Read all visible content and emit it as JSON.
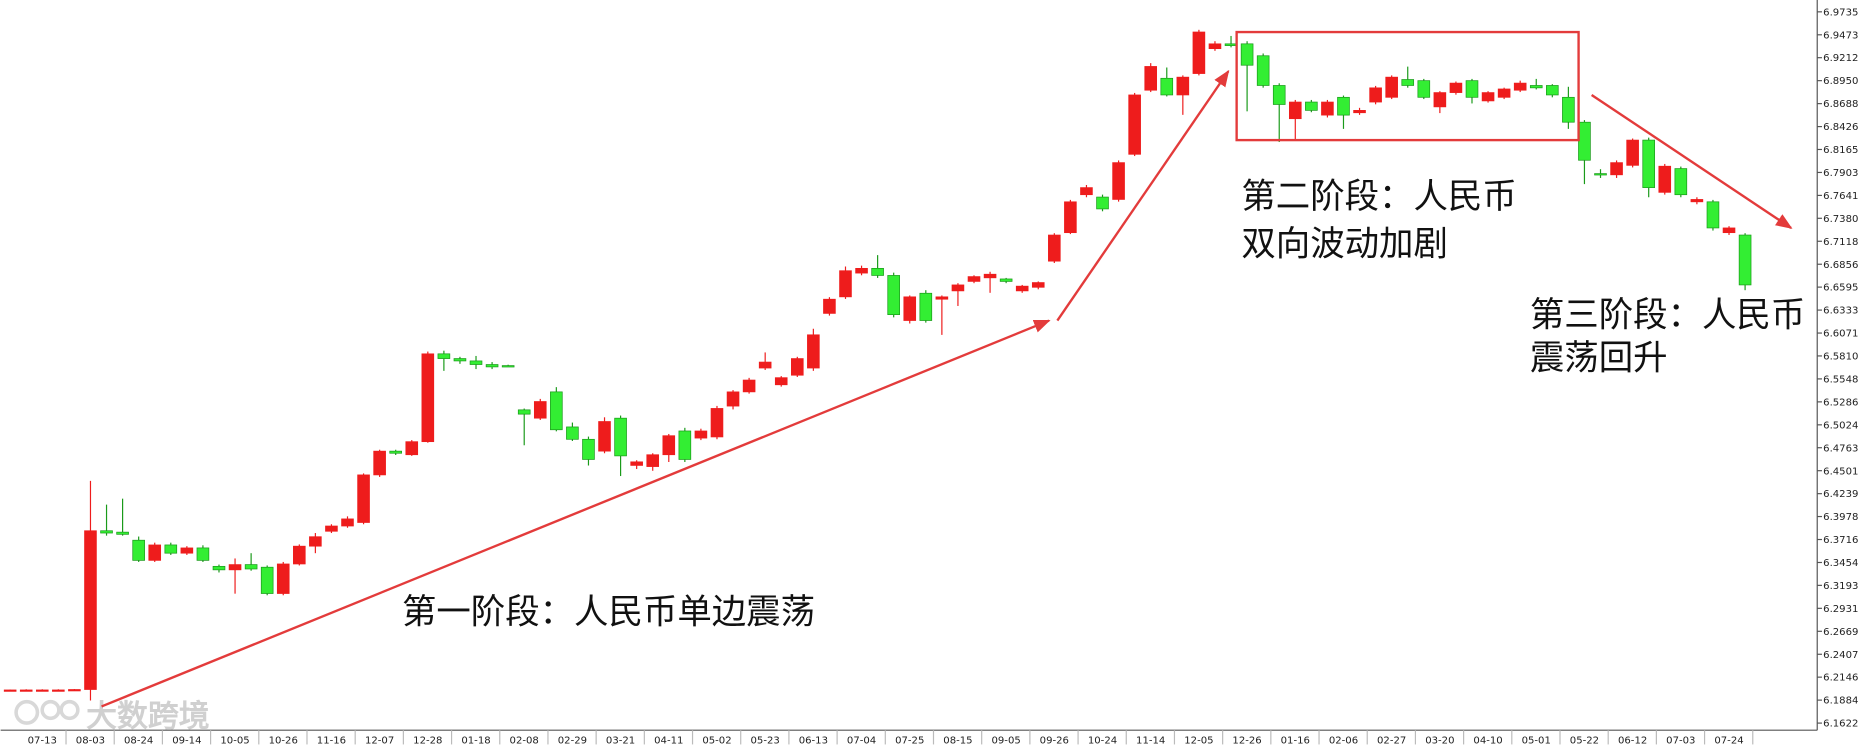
{
  "chart_data": {
    "type": "candlestick",
    "up_color": "#ee1c1c",
    "down_color": "#33ee33",
    "grid": false,
    "ylim": [
      6.1541,
      6.987
    ],
    "yticks": [
      6.9735,
      6.9473,
      6.9212,
      {
        "value": 6.895,
        "label": "6.8950"
      },
      6.8688,
      6.8426,
      6.8165,
      6.7903,
      6.7641,
      {
        "value": 6.738,
        "label": "6.7380"
      },
      6.7118,
      6.6856,
      6.6595,
      6.6333,
      6.6071,
      {
        "value": 6.581,
        "label": "6.5810"
      },
      6.5548,
      6.5286,
      6.5024,
      6.4763,
      6.4501,
      6.4239,
      6.3978,
      6.3716,
      6.3454,
      6.3193,
      6.2931,
      6.2669,
      6.2407,
      6.2146,
      6.1884,
      6.1622
    ],
    "categories": [
      null,
      null,
      "07-13",
      null,
      null,
      "08-03",
      null,
      null,
      "08-24",
      null,
      null,
      "09-14",
      null,
      null,
      "10-05",
      null,
      null,
      "10-26",
      null,
      null,
      "11-16",
      null,
      null,
      "12-07",
      null,
      null,
      "12-28",
      null,
      null,
      "01-18",
      null,
      null,
      "02-08",
      null,
      null,
      "02-29",
      null,
      null,
      "03-21",
      null,
      null,
      "04-11",
      null,
      null,
      "05-02",
      null,
      null,
      "05-23",
      null,
      null,
      "06-13",
      null,
      null,
      "07-04",
      null,
      null,
      "07-25",
      null,
      null,
      "08-15",
      null,
      null,
      "09-05",
      null,
      null,
      "09-26",
      null,
      null,
      "10-24",
      null,
      null,
      "11-14",
      null,
      null,
      "12-05",
      null,
      null,
      "12-26",
      null,
      null,
      "01-16",
      null,
      null,
      "02-06",
      null,
      null,
      "02-27",
      null,
      null,
      "03-20",
      null,
      null,
      "04-10",
      null,
      null,
      "05-01",
      null,
      null,
      "05-22",
      null,
      null,
      "06-12",
      null,
      null,
      "07-03",
      null,
      null,
      "07-24",
      null
    ],
    "open": [
      6.199,
      6.1995,
      6.1995,
      6.1995,
      6.1995,
      6.2005,
      6.3816,
      6.38,
      6.3708,
      6.3478,
      6.3654,
      6.356,
      6.362,
      6.341,
      6.337,
      6.343,
      6.34,
      6.31,
      6.3437,
      6.364,
      6.381,
      6.387,
      6.391,
      6.4453,
      6.4724,
      6.4683,
      6.4832,
      6.5834,
      6.578,
      6.5753,
      6.5712,
      6.57,
      6.5195,
      6.51,
      6.54,
      6.5,
      6.4859,
      6.4724,
      6.51,
      6.4561,
      6.4548,
      6.4683,
      6.4954,
      6.4873,
      6.4886,
      6.5238,
      6.54,
      6.5672,
      6.5481,
      6.559,
      6.5672,
      6.6295,
      6.6484,
      6.6755,
      6.6809,
      6.6728,
      6.6214,
      6.6525,
      6.6457,
      6.6552,
      6.666,
      6.6701,
      6.6688,
      6.6552,
      6.6593,
      6.6891,
      6.7216,
      6.7649,
      6.7622,
      6.7595,
      6.811,
      6.8841,
      6.8977,
      6.8787,
      6.9031,
      6.9315,
      6.937,
      6.937,
      6.9234,
      6.8895,
      6.8516,
      6.8706,
      6.8557,
      6.876,
      6.8584,
      6.8706,
      6.876,
      6.8963,
      6.895,
      6.8651,
      6.8814,
      6.895,
      6.8719,
      6.876,
      6.8841,
      6.8895,
      6.8895,
      6.876,
      6.8476,
      6.789,
      6.7876,
      6.7984,
      6.8272,
      6.7676,
      6.7947,
      6.7568,
      6.7568,
      6.7216,
      6.7189
    ],
    "high": [
      6.2005,
      6.2008,
      6.2008,
      6.2008,
      6.201,
      6.4385,
      6.4114,
      6.4182,
      6.375,
      6.368,
      6.368,
      6.364,
      6.365,
      6.343,
      6.35,
      6.356,
      6.342,
      6.346,
      6.366,
      6.379,
      6.389,
      6.398,
      6.447,
      6.474,
      6.474,
      6.485,
      6.586,
      6.587,
      6.58,
      6.581,
      6.574,
      6.571,
      6.521,
      6.532,
      6.5454,
      6.505,
      6.489,
      6.511,
      6.513,
      6.462,
      6.47,
      6.492,
      6.499,
      6.498,
      6.524,
      6.542,
      6.556,
      6.585,
      6.558,
      6.58,
      6.612,
      6.648,
      6.683,
      6.684,
      6.696,
      6.676,
      6.65,
      6.656,
      6.65,
      6.664,
      6.673,
      6.677,
      6.67,
      6.662,
      6.666,
      6.721,
      6.759,
      6.776,
      6.765,
      6.804,
      6.881,
      6.915,
      6.91,
      6.901,
      6.953,
      6.94,
      6.946,
      6.94,
      6.926,
      6.892,
      6.873,
      6.873,
      6.873,
      6.878,
      6.864,
      6.889,
      6.901,
      6.911,
      6.897,
      6.883,
      6.894,
      6.897,
      6.883,
      6.887,
      6.895,
      6.897,
      6.891,
      6.888,
      6.85,
      6.794,
      6.804,
      6.829,
      6.83,
      6.8,
      6.797,
      6.762,
      6.759,
      6.729,
      6.721
    ],
    "low": [
      6.1985,
      6.199,
      6.199,
      6.199,
      6.199,
      6.1879,
      6.376,
      6.376,
      6.346,
      6.346,
      6.354,
      6.354,
      6.346,
      6.334,
      6.3098,
      6.336,
      6.308,
      6.308,
      6.342,
      6.356,
      6.379,
      6.385,
      6.389,
      6.443,
      6.468,
      6.467,
      6.482,
      6.564,
      6.572,
      6.566,
      6.566,
      6.569,
      6.4791,
      6.508,
      6.495,
      6.484,
      6.456,
      6.47,
      6.444,
      6.452,
      6.45,
      6.46,
      6.46,
      6.485,
      6.486,
      6.52,
      6.538,
      6.565,
      6.546,
      6.557,
      6.564,
      6.627,
      6.646,
      6.673,
      6.67,
      6.625,
      6.618,
      6.619,
      6.605,
      6.638,
      6.664,
      6.653,
      6.664,
      6.653,
      6.657,
      6.687,
      6.72,
      6.762,
      6.746,
      6.757,
      6.809,
      6.882,
      6.877,
      6.856,
      6.901,
      6.929,
      6.933,
      6.86,
      6.887,
      6.825,
      6.828,
      6.859,
      6.853,
      6.84,
      6.856,
      6.868,
      6.874,
      6.887,
      6.874,
      6.858,
      6.879,
      6.869,
      6.87,
      6.874,
      6.882,
      6.885,
      6.876,
      6.84,
      6.777,
      6.784,
      6.784,
      6.796,
      6.762,
      6.765,
      6.762,
      6.754,
      6.724,
      6.719,
      6.656
    ],
    "close": [
      6.2,
      6.2,
      6.2,
      6.2,
      6.2005,
      6.3816,
      6.379,
      6.3775,
      6.3478,
      6.3654,
      6.356,
      6.362,
      6.3478,
      6.337,
      6.343,
      6.338,
      6.31,
      6.3437,
      6.364,
      6.3748,
      6.387,
      6.3951,
      6.4453,
      6.4724,
      6.47,
      6.4832,
      6.5834,
      6.578,
      6.5753,
      6.5712,
      6.5685,
      6.5694,
      6.5146,
      6.529,
      6.4968,
      6.4859,
      6.4629,
      6.5062,
      6.467,
      6.4602,
      6.4683,
      6.49,
      6.4629,
      6.4954,
      6.5211,
      6.54,
      6.5535,
      6.574,
      6.5562,
      6.578,
      6.6051,
      6.6457,
      6.6782,
      6.6809,
      6.6728,
      6.6281,
      6.6484,
      6.6214,
      6.6484,
      6.662,
      6.6715,
      6.6742,
      6.666,
      6.6606,
      6.6647,
      6.7189,
      6.7568,
      6.773,
      6.7487,
      6.8015,
      6.8787,
      6.9112,
      6.8787,
      6.899,
      6.9505,
      6.937,
      6.935,
      6.9126,
      6.8895,
      6.8678,
      6.8706,
      6.8611,
      6.8706,
      6.8557,
      6.8611,
      6.8868,
      6.899,
      6.8895,
      6.876,
      6.8814,
      6.8922,
      6.876,
      6.8814,
      6.8855,
      6.8922,
      6.8868,
      6.8787,
      6.8476,
      6.8042,
      6.788,
      6.8015,
      6.8272,
      6.773,
      6.7974,
      6.7649,
      6.7595,
      6.727,
      6.727,
      6.662
    ],
    "annotations": [
      "第一阶段：人民币单边震荡",
      "第二阶段：人民币",
      "双向波动加剧",
      "第三阶段：人民币",
      "震荡回升"
    ],
    "watermark": "大数跨境"
  }
}
